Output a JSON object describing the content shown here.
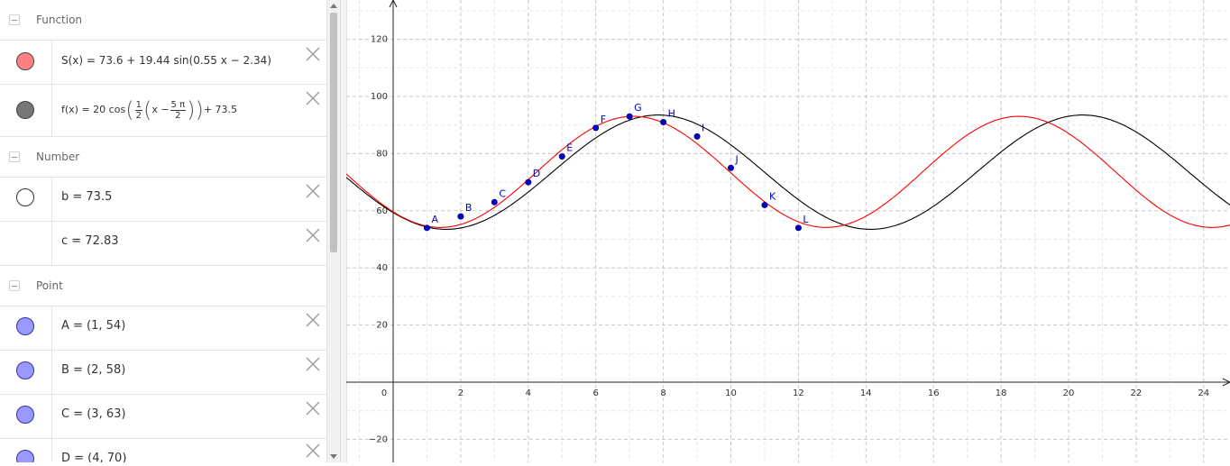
{
  "algebra": {
    "groups": {
      "function": "Function",
      "number": "Number",
      "point": "Point"
    },
    "functions": [
      {
        "text": "S(x)  =  73.6 + 19.44  sin(0.55 x − 2.34)",
        "color": "#ff0000"
      },
      {
        "lhs": "f(x)  =  20  cos",
        "half_num": "1",
        "half_den": "2",
        "x_minus": "x −",
        "pi_num": "5 π",
        "pi_den": "2",
        "tail": "+ 73.5",
        "color": "#000000"
      }
    ],
    "numbers": [
      {
        "text": "b = 73.5"
      },
      {
        "text": "c = 72.83"
      }
    ],
    "points": [
      {
        "text": "A = (1, 54)"
      },
      {
        "text": "B = (2, 58)"
      },
      {
        "text": "C = (3, 63)"
      },
      {
        "text": "D = (4, 70)"
      }
    ]
  },
  "graph": {
    "x_ticks": [
      "0",
      "2",
      "4",
      "6",
      "8",
      "10",
      "12",
      "14",
      "16",
      "18",
      "20",
      "22",
      "24"
    ],
    "y_ticks": [
      "−20",
      "20",
      "40",
      "60",
      "80",
      "100",
      "120"
    ],
    "points": [
      {
        "label": "A",
        "x": 1,
        "y": 54
      },
      {
        "label": "B",
        "x": 2,
        "y": 58
      },
      {
        "label": "C",
        "x": 3,
        "y": 63
      },
      {
        "label": "D",
        "x": 4,
        "y": 70
      },
      {
        "label": "E",
        "x": 5,
        "y": 79
      },
      {
        "label": "F",
        "x": 6,
        "y": 89
      },
      {
        "label": "G",
        "x": 7,
        "y": 93
      },
      {
        "label": "H",
        "x": 8,
        "y": 91
      },
      {
        "label": "I",
        "x": 9,
        "y": 86
      },
      {
        "label": "J",
        "x": 10,
        "y": 75
      },
      {
        "label": "K",
        "x": 11,
        "y": 62
      },
      {
        "label": "L",
        "x": 12,
        "y": 54
      }
    ],
    "curves": {
      "S": {
        "a": 73.6,
        "amp": 19.44,
        "k": 0.55,
        "phase": -2.34,
        "color": "#ff0000"
      },
      "f": {
        "a": 73.5,
        "amp": 20,
        "k": 0.5,
        "shift": 7.853981634,
        "color": "#000000"
      }
    },
    "point_color": "#0000cc",
    "label_color": "#0000cc"
  }
}
